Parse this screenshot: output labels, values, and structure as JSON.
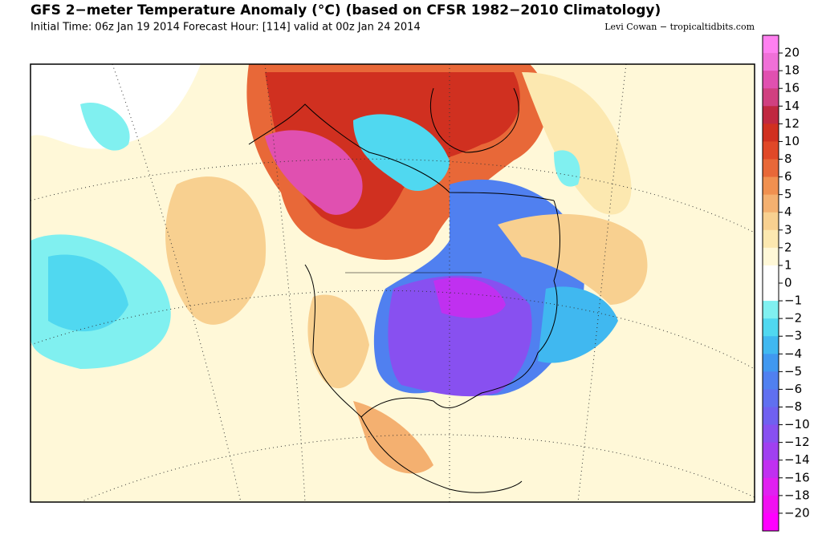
{
  "header": {
    "title": "GFS 2−meter Temperature Anomaly (°C) (based on CFSR 1982−2010 Climatology)",
    "subtitle": "Initial Time: 06z Jan 19 2014 Forecast Hour: [114] valid at 00z Jan 24 2014",
    "credit": "Levi Cowan − tropicaltidbits.com"
  },
  "colorbar": {
    "labels": [
      "20",
      "18",
      "16",
      "14",
      "12",
      "10",
      "8",
      "6",
      "5",
      "4",
      "3",
      "2",
      "1",
      "0",
      "−1",
      "−2",
      "−3",
      "−4",
      "−5",
      "−6",
      "−8",
      "−10",
      "−12",
      "−14",
      "−16",
      "−18",
      "−20"
    ],
    "colors": [
      "#ff80f0",
      "#f070d8",
      "#e050b0",
      "#d04080",
      "#c02840",
      "#d03020",
      "#e04828",
      "#e86838",
      "#f09050",
      "#f4b070",
      "#f8d090",
      "#fce8b0",
      "#fff8d8",
      "#ffffff",
      "#ffffff",
      "#80f0f0",
      "#50d8f0",
      "#40b8f0",
      "#4098f0",
      "#5080f0",
      "#6070f0",
      "#7060f0",
      "#8850f0",
      "#a040f0",
      "#c030f0",
      "#e020f0",
      "#f010f0",
      "#ff00ff"
    ]
  }
}
